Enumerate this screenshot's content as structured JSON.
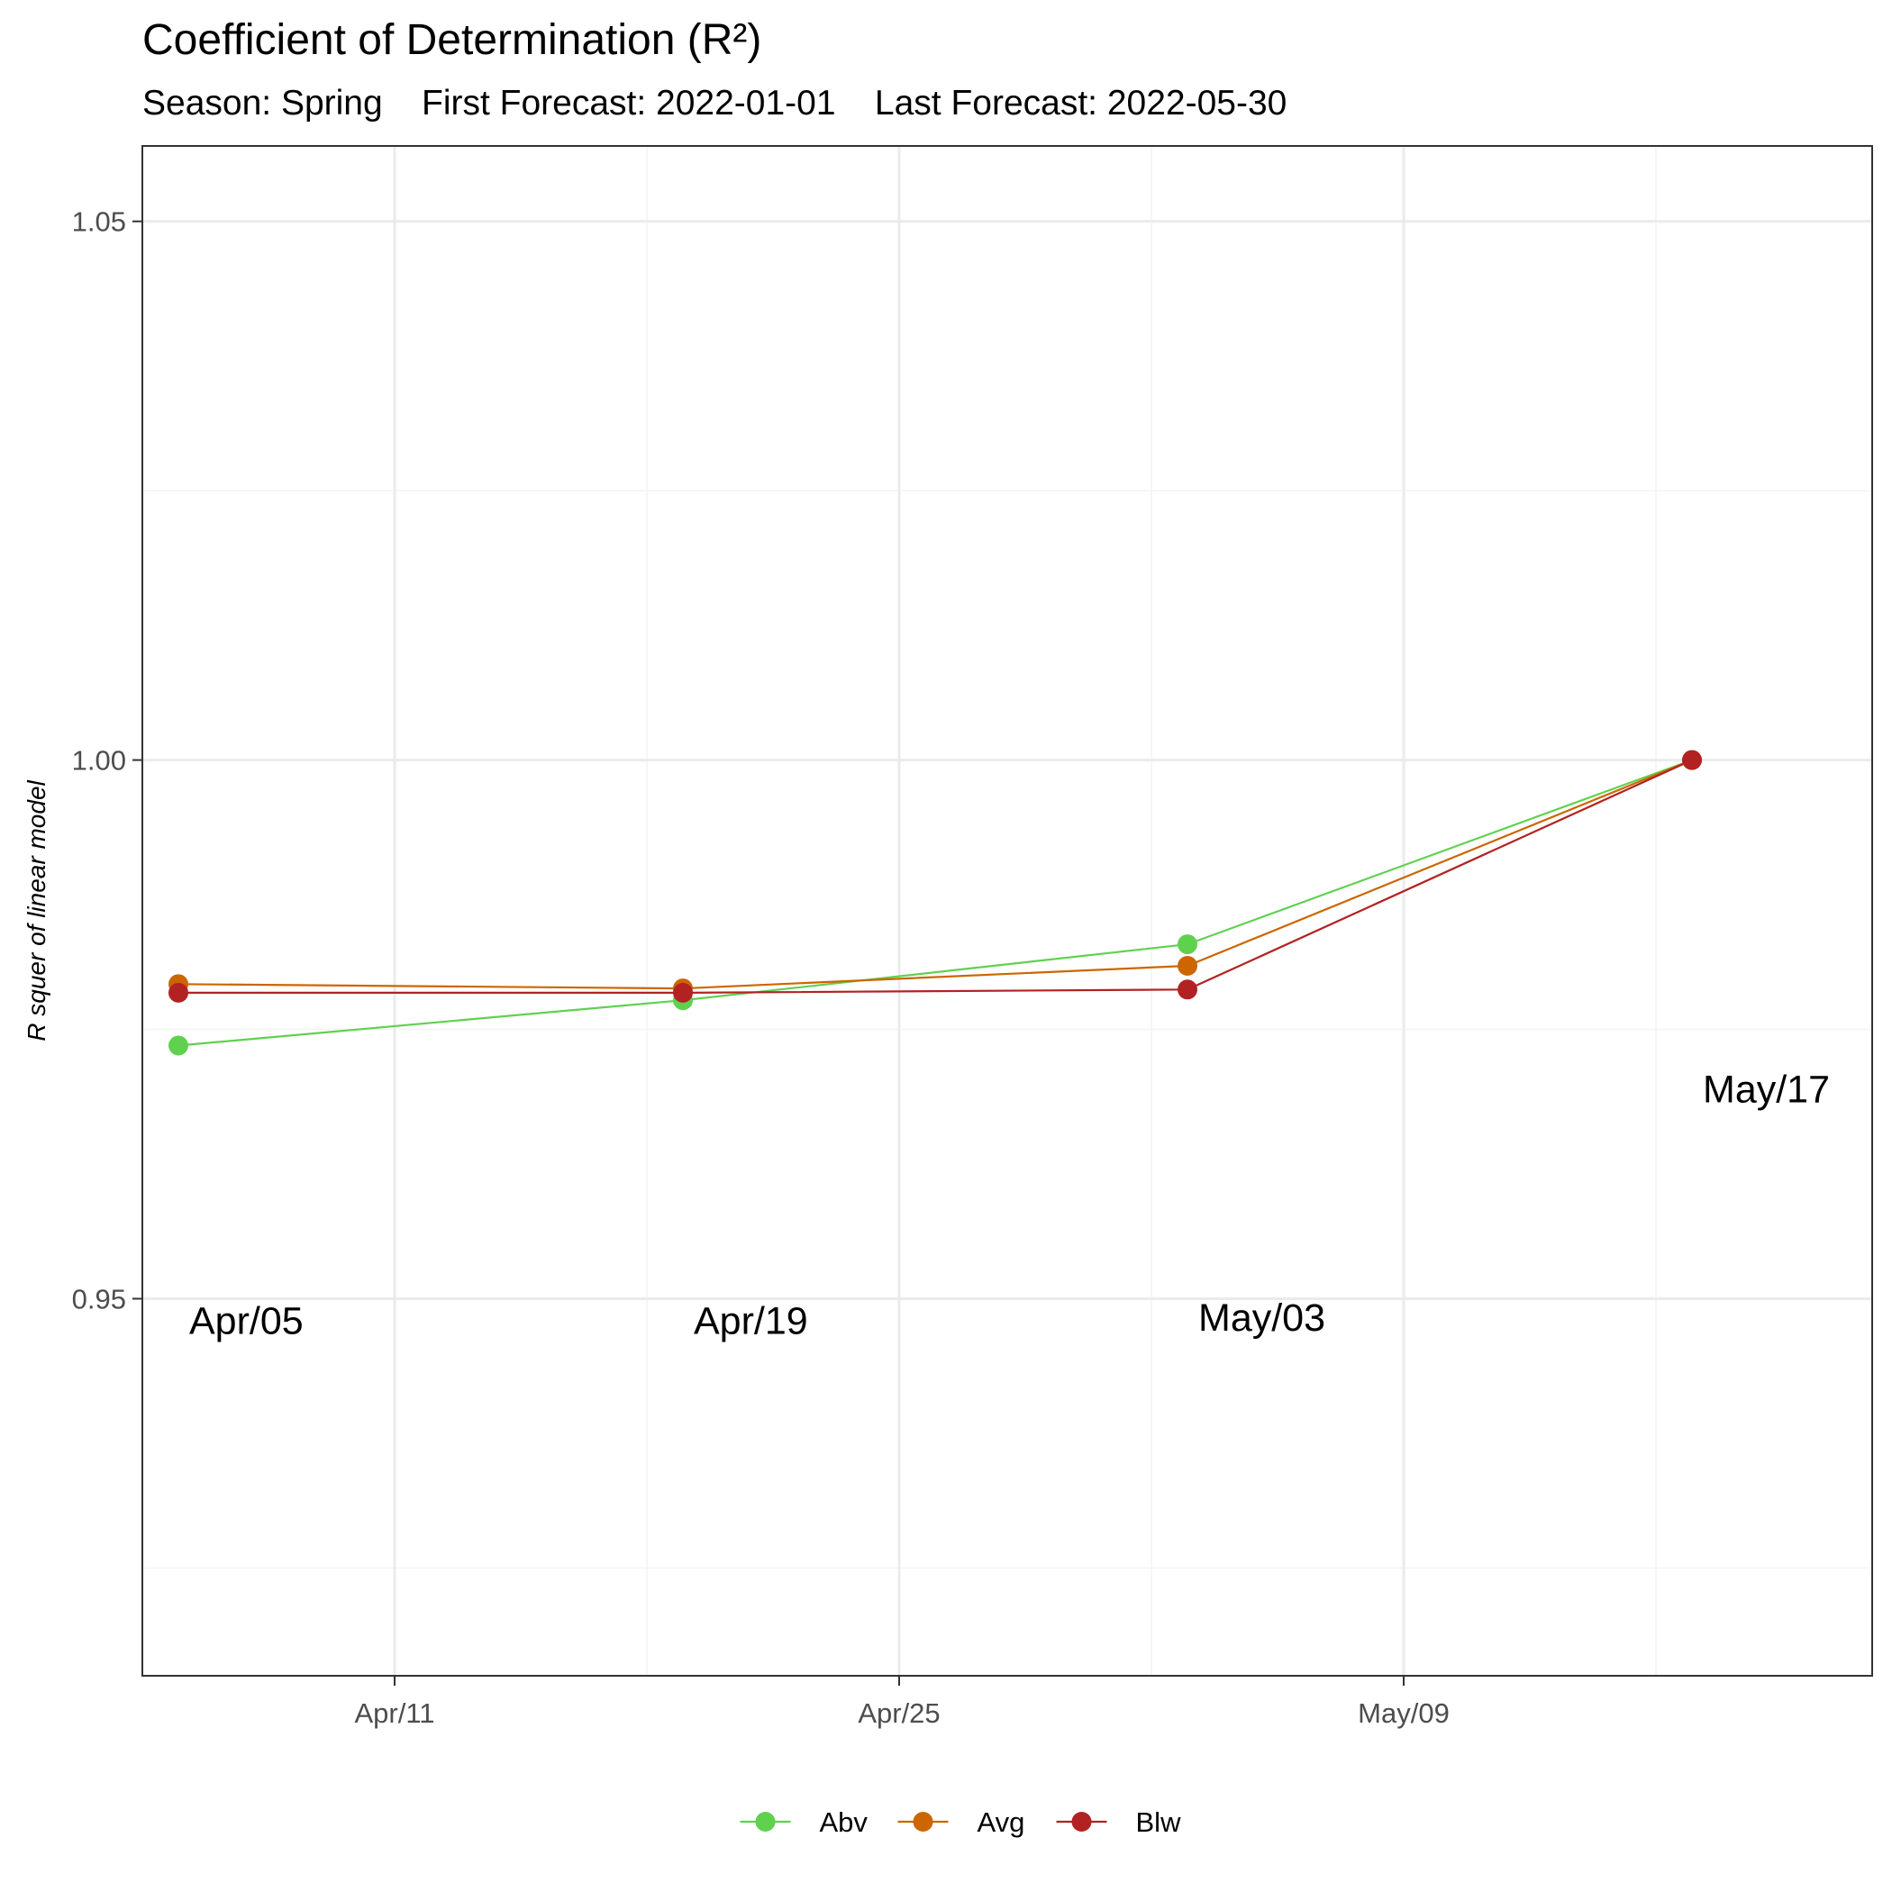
{
  "chart_data": {
    "type": "line",
    "title": "Coefficient of Determination (R²)",
    "subtitle": "Season: Spring    First Forecast: 2022-01-01    Last Forecast: 2022-05-30",
    "xlabel": "",
    "ylabel": "R squer of linear model",
    "x": [
      "2022-04-05",
      "2022-04-19",
      "2022-05-03",
      "2022-05-17"
    ],
    "xlim": [
      "2022-04-04",
      "2022-05-22"
    ],
    "ylim": [
      0.915,
      1.057
    ],
    "x_ticks": [
      {
        "date": "2022-04-11",
        "label": "Apr/11"
      },
      {
        "date": "2022-04-25",
        "label": "Apr/25"
      },
      {
        "date": "2022-05-09",
        "label": "May/09"
      }
    ],
    "y_ticks": [
      {
        "value": 0.95,
        "label": "0.95"
      },
      {
        "value": 1.0,
        "label": "1.00"
      },
      {
        "value": 1.05,
        "label": "1.05"
      }
    ],
    "series": [
      {
        "name": "Abv",
        "color": "#5fd14f",
        "values": [
          0.9735,
          0.9777,
          0.9829,
          1.0
        ]
      },
      {
        "name": "Avg",
        "color": "#cc6600",
        "values": [
          0.9792,
          0.9788,
          0.9809,
          1.0
        ]
      },
      {
        "name": "Blw",
        "color": "#b22222",
        "values": [
          0.9784,
          0.9784,
          0.9787,
          1.0
        ]
      }
    ],
    "annotations": [
      {
        "label": "Apr/05",
        "date": "2022-04-05",
        "value": 0.948
      },
      {
        "label": "Apr/19",
        "date": "2022-04-19",
        "value": 0.948
      },
      {
        "label": "May/03",
        "date": "2022-05-03",
        "value": 0.9483
      },
      {
        "label": "May/17",
        "date": "2022-05-17",
        "value": 0.9695
      }
    ],
    "grid": true,
    "legend": "bottom",
    "colors": {
      "axis": "#333333",
      "grid_major": "#ebebeb",
      "grid_minor": "#f4f4f4",
      "tick_text": "#4d4d4d"
    }
  }
}
